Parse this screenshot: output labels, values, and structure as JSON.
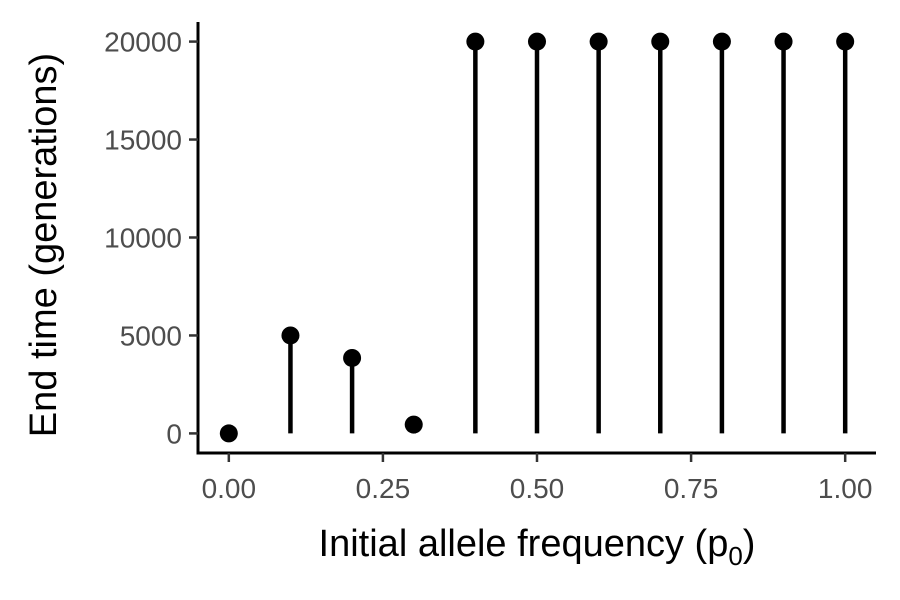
{
  "chart_data": {
    "type": "lollipop",
    "xlabel": "Initial allele frequency (p",
    "xlabel_subscript": "0",
    "xlabel_suffix": ")",
    "ylabel": "End time (generations)",
    "x": [
      0.0,
      0.1,
      0.2,
      0.3,
      0.4,
      0.5,
      0.6,
      0.7,
      0.8,
      0.9,
      1.0
    ],
    "y": [
      0,
      5000,
      3850,
      450,
      20000,
      20000,
      20000,
      20000,
      20000,
      20000,
      20000
    ],
    "xlim": [
      -0.05,
      1.05
    ],
    "ylim": [
      -1000,
      21000
    ],
    "x_ticks": [
      0.0,
      0.25,
      0.5,
      0.75,
      1.0
    ],
    "x_tick_labels": [
      "0.00",
      "0.25",
      "0.50",
      "0.75",
      "1.00"
    ],
    "y_ticks": [
      0,
      5000,
      10000,
      15000,
      20000
    ],
    "y_tick_labels": [
      "0",
      "5000",
      "10000",
      "15000",
      "20000"
    ],
    "grid": false,
    "mark_color": "#000000"
  }
}
